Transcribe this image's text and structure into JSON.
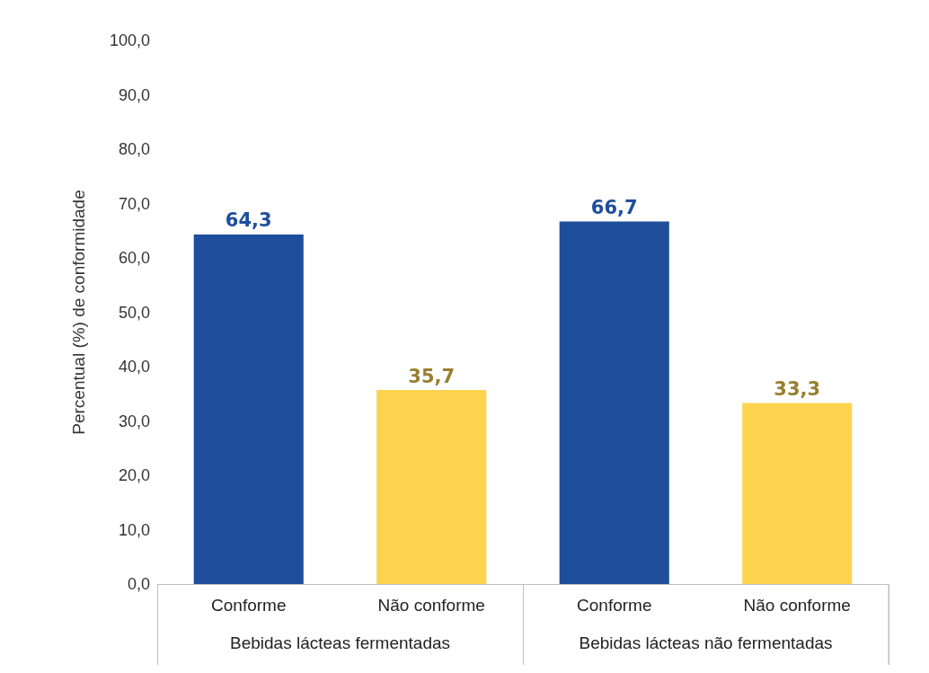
{
  "chart_data": {
    "type": "bar",
    "ylabel": "Percentual (%) de conformidade",
    "categories": [
      "Conforme",
      "Não conforme",
      "Conforme",
      "Não conforme"
    ],
    "values": [
      64.3,
      35.7,
      66.7,
      33.3
    ],
    "colors": [
      "#1f4e9c",
      "#fdd34f",
      "#1f4e9c",
      "#fdd34f"
    ],
    "value_labels": [
      "64,3",
      "35,7",
      "66,7",
      "33,3"
    ],
    "annotations": [
      "Bebidas lácteas fermentadas",
      "Bebidas lácteas não fermentadas"
    ],
    "ylim": [
      0,
      100
    ],
    "yticks": [
      {
        "value": 0,
        "label": "0,0"
      },
      {
        "value": 10,
        "label": "10,0"
      },
      {
        "value": 20,
        "label": "20,0"
      },
      {
        "value": 30,
        "label": "30,0"
      },
      {
        "value": 40,
        "label": "40,0"
      },
      {
        "value": 50,
        "label": "50,0"
      },
      {
        "value": 60,
        "label": "60,0"
      },
      {
        "value": 70,
        "label": "70,0"
      },
      {
        "value": 80,
        "label": "80,0"
      },
      {
        "value": 90,
        "label": "90,0"
      },
      {
        "value": 100,
        "label": "100,0"
      }
    ],
    "grid": false
  }
}
